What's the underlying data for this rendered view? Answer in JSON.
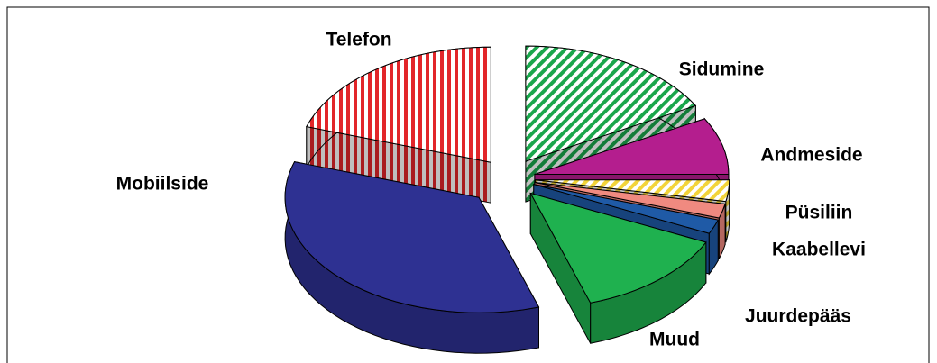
{
  "chart_data": {
    "type": "pie",
    "three_d": true,
    "categories": [
      "Sidumine",
      "Andmeside",
      "Püsiliin",
      "Kaabellevi",
      "Juurdepääs",
      "Muud",
      "Mobiilside",
      "Telefon"
    ],
    "values": [
      17,
      8,
      3,
      2,
      2,
      13,
      35,
      20
    ],
    "colors": [
      "#1aa64b",
      "#b41e8e",
      "#f2d43a",
      "#f08a80",
      "#1f5aa6",
      "#1fb14f",
      "#2e3192",
      "#e2262a"
    ],
    "hatched": [
      true,
      false,
      true,
      false,
      false,
      false,
      false,
      true
    ]
  }
}
